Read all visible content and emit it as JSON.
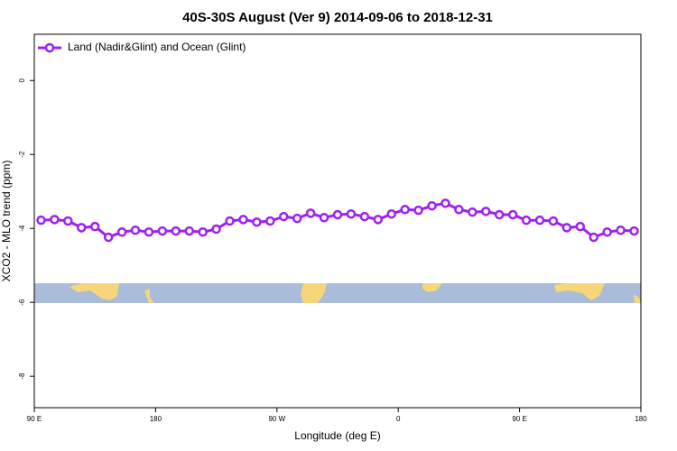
{
  "chart_data": {
    "type": "line",
    "title": "40S-30S August (Ver 9)   2014-09-06 to 2018-12-31",
    "xlabel": "Longitude (deg E)",
    "ylabel": "XCO2 - MLO trend (ppm)",
    "x": [
      95,
      105,
      115,
      125,
      135,
      145,
      155,
      165,
      175,
      185,
      195,
      205,
      215,
      225,
      235,
      245,
      255,
      265,
      275,
      285,
      295,
      305,
      315,
      325,
      335,
      345,
      355,
      365,
      375,
      385,
      395,
      405,
      415,
      425,
      435,
      445,
      455,
      465,
      475,
      485,
      495,
      505,
      515,
      525,
      535
    ],
    "series": [
      {
        "name": "Land (Nadir&Glint) and Ocean (Glint)",
        "color": "#a020f0",
        "values": [
          -3.78,
          -3.76,
          -3.8,
          -3.98,
          -3.95,
          -4.24,
          -4.1,
          -4.05,
          -4.1,
          -4.07,
          -4.07,
          -4.07,
          -4.1,
          -4.02,
          -3.8,
          -3.76,
          -3.83,
          -3.8,
          -3.68,
          -3.73,
          -3.59,
          -3.71,
          -3.63,
          -3.61,
          -3.68,
          -3.76,
          -3.61,
          -3.49,
          -3.51,
          -3.39,
          -3.32,
          -3.49,
          -3.56,
          -3.54,
          -3.63,
          -3.63,
          -3.78,
          -3.78,
          -3.8,
          -3.98,
          -3.95,
          -4.24,
          -4.1,
          -4.05,
          -4.07
        ]
      }
    ],
    "xlim": [
      90,
      540
    ],
    "xticks": [
      {
        "value": 90,
        "label": "90 E"
      },
      180,
      {
        "value": 270,
        "label": "90 W"
      },
      {
        "value": 360,
        "label": "0"
      },
      {
        "value": 450,
        "label": "90 E"
      },
      {
        "value": 540,
        "label": "180"
      }
    ],
    "ylim": [
      -8.85,
      1.25
    ],
    "yticks": [
      0,
      -2,
      -4,
      -6,
      -8
    ],
    "legend": "top-left"
  }
}
